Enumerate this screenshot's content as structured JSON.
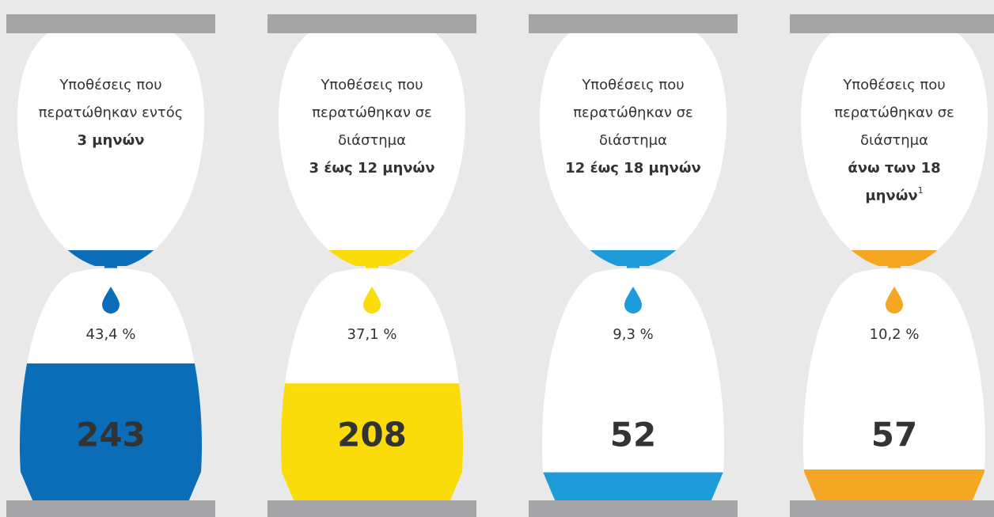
{
  "hourglasses": [
    {
      "lines": [
        "Υποθέσεις που",
        "περατώθηκαν εντός"
      ],
      "bold": [
        "3 μηνών"
      ],
      "percent": "43,4 %",
      "count": 243,
      "color": "#0b6db7",
      "count_color": "#ffffff"
    },
    {
      "lines": [
        "Υποθέσεις που",
        "περατώθηκαν σε",
        "διάστημα"
      ],
      "bold": [
        "3 έως 12 μηνών"
      ],
      "percent": "37,1 %",
      "count": 208,
      "color": "#f9dc0a",
      "count_color": "#222222"
    },
    {
      "lines": [
        "Υποθέσεις που",
        "περατώθηκαν σε",
        "διάστημα"
      ],
      "bold": [
        "12 έως 18 μηνών"
      ],
      "percent": "9,3 %",
      "count": 52,
      "color": "#1e9bd9",
      "count_color": "#222222"
    },
    {
      "lines": [
        "Υποθέσεις που",
        "περατώθηκαν σε",
        "διάστημα"
      ],
      "bold": [
        "άνω των 18",
        "μηνών"
      ],
      "sup": "1",
      "percent": "10,2 %",
      "count": 57,
      "color": "#f5a623",
      "count_color": "#222222"
    }
  ]
}
